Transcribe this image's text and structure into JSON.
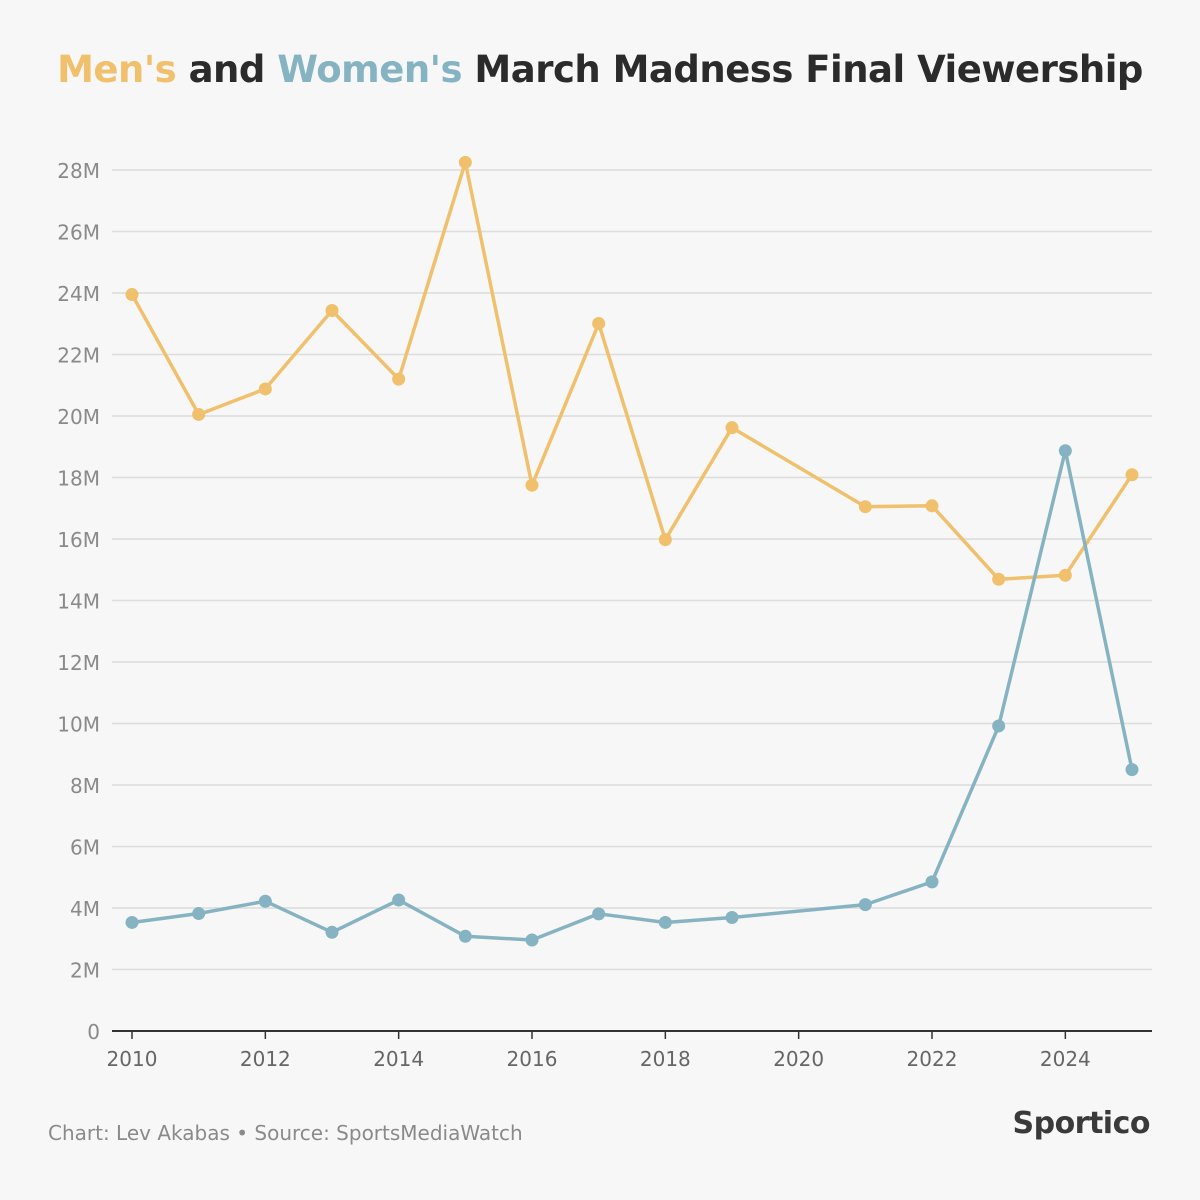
{
  "title": {
    "part1": "Men's",
    "part2": " and ",
    "part3": "Women's",
    "part4": " March Madness Final Viewership"
  },
  "footer": {
    "credit": "Chart: Lev Akabas • Source: SportsMediaWatch",
    "brand": "Sportico"
  },
  "colors": {
    "men": "#f0c06c",
    "women": "#86b3c2",
    "grid": "#dcdcdc",
    "axis": "#333333",
    "tick_label": "#8a8a8a"
  },
  "chart_data": {
    "type": "line",
    "xlim": [
      2010,
      2025
    ],
    "ylim": [
      0,
      28000000
    ],
    "y_ticks": [
      0,
      2000000,
      4000000,
      6000000,
      8000000,
      10000000,
      12000000,
      14000000,
      16000000,
      18000000,
      20000000,
      22000000,
      24000000,
      26000000,
      28000000
    ],
    "y_tick_labels": [
      "0",
      "2M",
      "4M",
      "6M",
      "8M",
      "10M",
      "12M",
      "14M",
      "16M",
      "18M",
      "20M",
      "22M",
      "24M",
      "26M",
      "28M"
    ],
    "x_ticks": [
      2010,
      2012,
      2014,
      2016,
      2018,
      2020,
      2022,
      2024
    ],
    "x_tick_labels": [
      "2010",
      "2012",
      "2014",
      "2016",
      "2018",
      "2020",
      "2022",
      "2024"
    ],
    "grid": true,
    "legend": "none (series named by title colors)",
    "series": [
      {
        "name": "Men's",
        "color": "#f0c06c",
        "x": [
          2010,
          2011,
          2012,
          2013,
          2014,
          2015,
          2016,
          2017,
          2018,
          2019,
          2021,
          2022,
          2023,
          2024,
          2025
        ],
        "values": [
          23950000,
          20050000,
          20880000,
          23430000,
          21200000,
          28250000,
          17750000,
          23010000,
          15980000,
          19620000,
          17050000,
          17080000,
          14690000,
          14820000,
          18090000
        ]
      },
      {
        "name": "Women's",
        "color": "#86b3c2",
        "x": [
          2010,
          2011,
          2012,
          2013,
          2014,
          2015,
          2016,
          2017,
          2018,
          2019,
          2021,
          2022,
          2023,
          2024,
          2025
        ],
        "values": [
          3530000,
          3820000,
          4220000,
          3210000,
          4260000,
          3080000,
          2960000,
          3810000,
          3530000,
          3690000,
          4110000,
          4850000,
          9920000,
          18870000,
          8500000
        ]
      }
    ]
  }
}
